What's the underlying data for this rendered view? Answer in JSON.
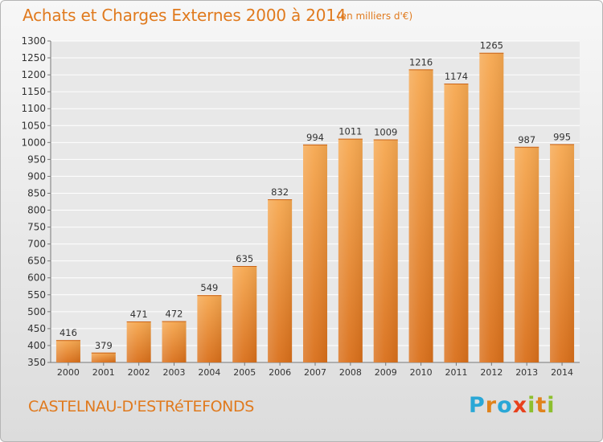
{
  "header": {
    "title": "Achats et Charges Externes 2000 à 2014",
    "unit": "(en milliers d'€)"
  },
  "footer": {
    "commune": "CASTELNAU-D'ESTRéTEFONDS",
    "logo_text": "Proxiti",
    "logo_letters": [
      {
        "char": "P",
        "color": "#2aa7d6"
      },
      {
        "char": "r",
        "color": "#e0831c"
      },
      {
        "char": "o",
        "color": "#2aa7d6"
      },
      {
        "char": "x",
        "color": "#e8401c"
      },
      {
        "char": "i",
        "color": "#8dbf2e"
      },
      {
        "char": "t",
        "color": "#e0831c"
      },
      {
        "char": "i",
        "color": "#8dbf2e"
      }
    ]
  },
  "colors": {
    "accent": "#e07a1e",
    "bar_top": "#f6a850",
    "bar_bottom": "#d96f1a",
    "grid": "#ffffff",
    "plot_bg": "#e8e8e8"
  },
  "chart_data": {
    "type": "bar",
    "title": "Achats et Charges Externes 2000 à 2014",
    "subtitle": "(en milliers d'€)",
    "xlabel": "",
    "ylabel": "",
    "categories": [
      "2000",
      "2001",
      "2002",
      "2003",
      "2004",
      "2005",
      "2006",
      "2007",
      "2008",
      "2009",
      "2010",
      "2011",
      "2012",
      "2013",
      "2014"
    ],
    "values": [
      416,
      379,
      471,
      472,
      549,
      635,
      832,
      994,
      1011,
      1009,
      1216,
      1174,
      1265,
      987,
      995
    ],
    "ylim": [
      350,
      1300
    ],
    "yticks": [
      350,
      400,
      450,
      500,
      550,
      600,
      650,
      700,
      750,
      800,
      850,
      900,
      950,
      1000,
      1050,
      1100,
      1150,
      1200,
      1250,
      1300
    ],
    "grid": true,
    "legend": "none"
  }
}
